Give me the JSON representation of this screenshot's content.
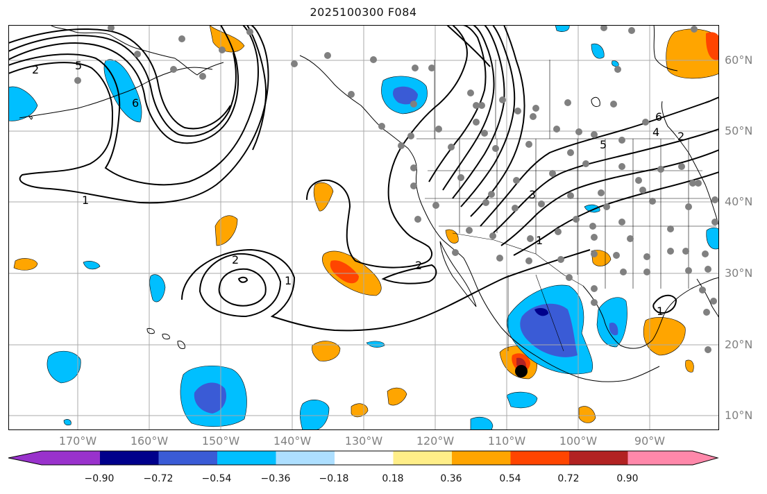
{
  "title": "2025100300 F084",
  "lat_labels": [
    "60°N",
    "50°N",
    "40°N",
    "30°N",
    "20°N",
    "10°N"
  ],
  "lon_labels": [
    "170°W",
    "160°W",
    "150°W",
    "140°W",
    "130°W",
    "120°W",
    "110°W",
    "100°W",
    "90°W"
  ],
  "contour_labels": [
    "2",
    "5",
    "6",
    "1",
    "2",
    "1",
    "2",
    "3",
    "1",
    "5",
    "6",
    "4",
    "2",
    "1"
  ],
  "colorbar": {
    "tick_labels": [
      "−0.90",
      "−0.72",
      "−0.54",
      "−0.36",
      "−0.18",
      "0.18",
      "0.36",
      "0.54",
      "0.72",
      "0.90"
    ],
    "colors": [
      "#9932CC",
      "#00008B",
      "#3A5BD6",
      "#00BFFF",
      "#ADDFFF",
      "#FFFFFF",
      "#FFEE88",
      "#FFA500",
      "#FF4500",
      "#B22222",
      "#FF88AA"
    ]
  },
  "colors": {
    "land": "#ffffff",
    "ocean": "#ffffff",
    "coast": "#000000",
    "grid": "#aaaaaa",
    "contour": "#000000",
    "station": "#808080",
    "storm": "#000000"
  }
}
